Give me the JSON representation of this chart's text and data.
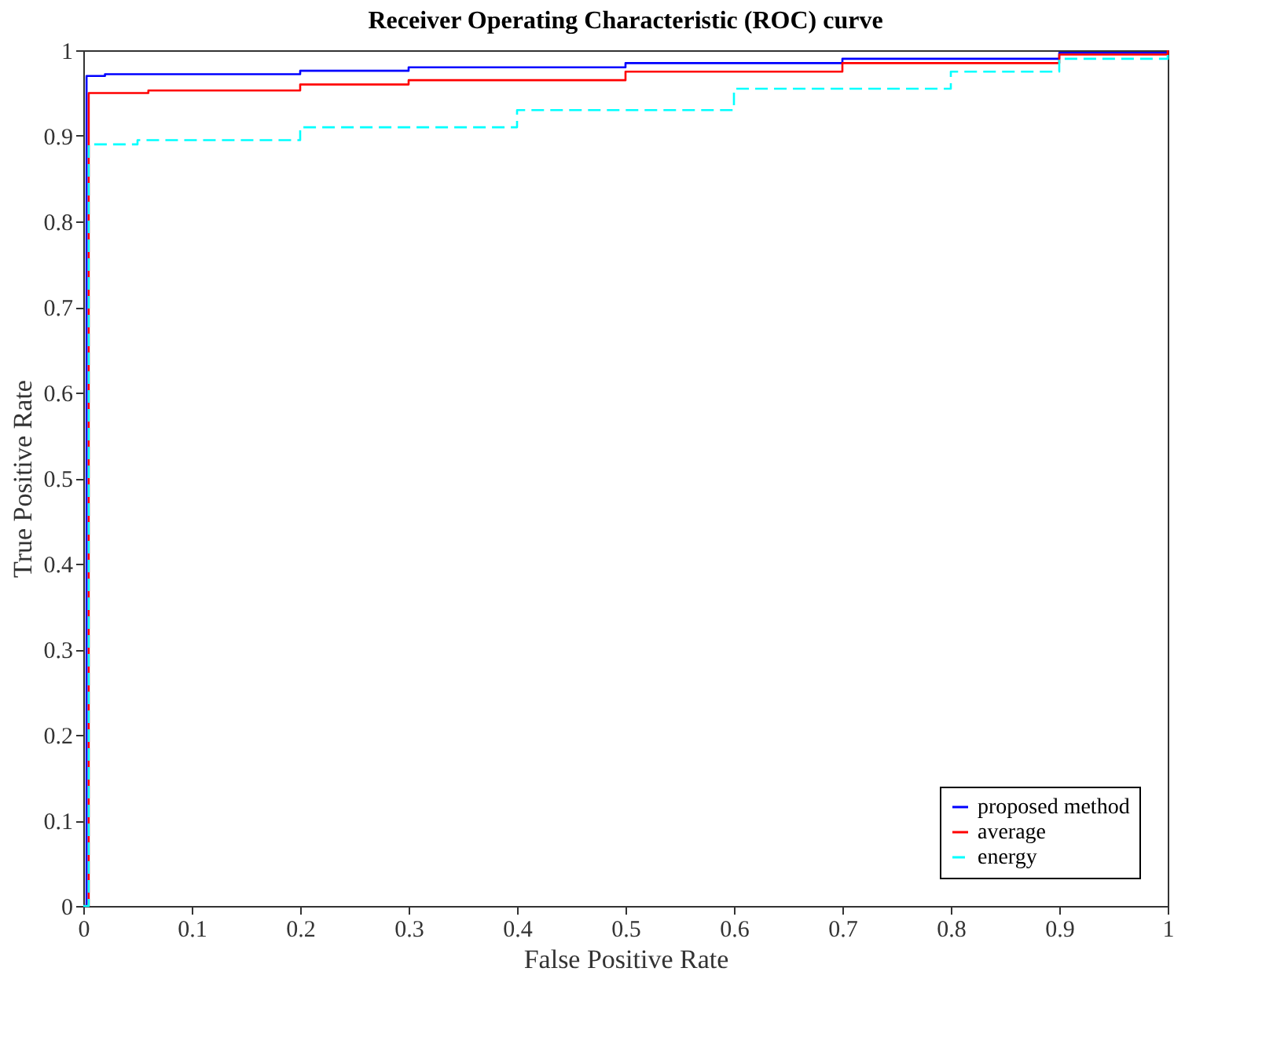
{
  "chart_data": {
    "type": "step",
    "title": "Receiver Operating Characteristic (ROC) curve",
    "xlabel": "False Positive Rate",
    "ylabel": "True Positive Rate",
    "xlim": [
      0,
      1
    ],
    "ylim": [
      0,
      1
    ],
    "xticks": [
      0,
      0.1,
      0.2,
      0.3,
      0.4,
      0.5,
      0.6,
      0.7,
      0.8,
      0.9,
      1
    ],
    "yticks": [
      0,
      0.1,
      0.2,
      0.3,
      0.4,
      0.5,
      0.6,
      0.7,
      0.8,
      0.9,
      1
    ],
    "grid": false,
    "legend": "bottom right",
    "marker": "none",
    "series": [
      {
        "name": "proposed method",
        "color": "#0000ff",
        "line_style": "solid",
        "x": [
          0,
          0.003,
          0.02,
          0.2,
          0.3,
          0.5,
          0.7,
          0.9,
          1
        ],
        "values": [
          0,
          0.97,
          0.972,
          0.976,
          0.98,
          0.985,
          0.99,
          0.997,
          1
        ]
      },
      {
        "name": "average",
        "color": "#ff0000",
        "line_style": "solid",
        "x": [
          0,
          0.005,
          0.06,
          0.2,
          0.3,
          0.5,
          0.7,
          0.9,
          1
        ],
        "values": [
          0,
          0.95,
          0.953,
          0.96,
          0.965,
          0.975,
          0.985,
          0.995,
          1
        ]
      },
      {
        "name": "energy",
        "color": "#00ffff",
        "line_style": "dashed",
        "x": [
          0,
          0.005,
          0.05,
          0.2,
          0.4,
          0.6,
          0.8,
          0.9,
          1
        ],
        "values": [
          0,
          0.89,
          0.895,
          0.91,
          0.93,
          0.955,
          0.975,
          0.99,
          1
        ]
      }
    ]
  }
}
